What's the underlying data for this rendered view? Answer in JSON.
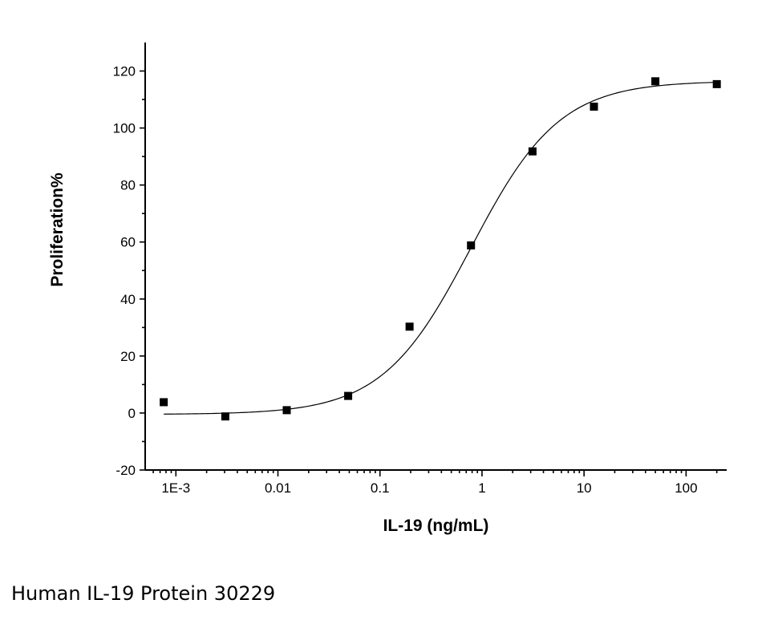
{
  "caption": "Human IL-19 Protein 30229",
  "chart_data": {
    "type": "scatter",
    "title": "",
    "xlabel": "IL-19 (ng/mL)",
    "ylabel": "Proliferation%",
    "x_scale": "log",
    "xlim": [
      0.0005,
      250
    ],
    "ylim": [
      -20,
      130
    ],
    "x_ticks": [
      0.001,
      0.01,
      0.1,
      1,
      10,
      100
    ],
    "x_tick_labels": [
      "1E-3",
      "0.01",
      "0.1",
      "1",
      "10",
      "100"
    ],
    "y_ticks": [
      -20,
      0,
      20,
      40,
      60,
      80,
      100,
      120
    ],
    "y_tick_labels": [
      "-20",
      "0",
      "20",
      "40",
      "60",
      "80",
      "100",
      "120"
    ],
    "grid": false,
    "legend": "none",
    "series": [
      {
        "marker": "square",
        "color": "#000000",
        "x": [
          0.00076,
          0.00305,
          0.0122,
          0.0488,
          0.195,
          0.78,
          3.125,
          12.5,
          50,
          200
        ],
        "y": [
          3.8,
          -1.2,
          1.0,
          6.0,
          30.3,
          58.8,
          91.8,
          107.5,
          116.4,
          115.4
        ]
      }
    ],
    "fit_curve": {
      "model": "4PL",
      "bottom": -0.5,
      "top": 116.5,
      "ec50": 0.78,
      "hill": 1.0
    }
  }
}
